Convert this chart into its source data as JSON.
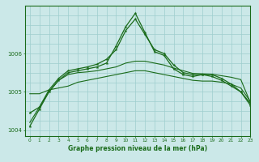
{
  "title": "Graphe pression niveau de la mer (hPa)",
  "bg_color": "#cbe8e8",
  "grid_color": "#9ecece",
  "line_color": "#1a6b1a",
  "xlim": [
    -0.5,
    23
  ],
  "ylim": [
    1003.85,
    1007.25
  ],
  "yticks": [
    1004,
    1005,
    1006
  ],
  "xticks": [
    0,
    1,
    2,
    3,
    4,
    5,
    6,
    7,
    8,
    9,
    10,
    11,
    12,
    13,
    14,
    15,
    16,
    17,
    18,
    19,
    20,
    21,
    22,
    23
  ],
  "hgrid_vals": [
    1004,
    1004.25,
    1004.5,
    1004.75,
    1005,
    1005.25,
    1005.5,
    1005.75,
    1006,
    1006.25,
    1006.5,
    1006.75,
    1007
  ],
  "series": [
    {
      "x": [
        0,
        1,
        2,
        3,
        4,
        5,
        6,
        7,
        8,
        9,
        10,
        11,
        12,
        13,
        14,
        15,
        16,
        17,
        18,
        19,
        20,
        21,
        22,
        23
      ],
      "y": [
        1004.1,
        1004.55,
        1005.0,
        1005.3,
        1005.5,
        1005.55,
        1005.6,
        1005.65,
        1005.75,
        1006.2,
        1006.7,
        1007.05,
        1006.55,
        1006.05,
        1005.95,
        1005.6,
        1005.45,
        1005.4,
        1005.45,
        1005.4,
        1005.3,
        1005.15,
        1005.0,
        1004.65
      ],
      "marker": true,
      "lw": 0.9
    },
    {
      "x": [
        0,
        1,
        2,
        3,
        4,
        5,
        6,
        7,
        8,
        9,
        10,
        11,
        12,
        13,
        14,
        15,
        16,
        17,
        18,
        19,
        20,
        21,
        22,
        23
      ],
      "y": [
        1004.45,
        1004.6,
        1005.05,
        1005.35,
        1005.55,
        1005.6,
        1005.65,
        1005.72,
        1005.85,
        1006.1,
        1006.6,
        1006.9,
        1006.5,
        1006.1,
        1006.0,
        1005.7,
        1005.5,
        1005.45,
        1005.45,
        1005.45,
        1005.35,
        1005.2,
        1005.0,
        1004.7
      ],
      "marker": true,
      "lw": 0.9
    },
    {
      "x": [
        0,
        1,
        2,
        3,
        4,
        5,
        6,
        7,
        8,
        9,
        10,
        11,
        12,
        13,
        14,
        15,
        16,
        17,
        18,
        19,
        20,
        21,
        22,
        23
      ],
      "y": [
        1004.95,
        1004.95,
        1005.05,
        1005.1,
        1005.15,
        1005.25,
        1005.3,
        1005.35,
        1005.4,
        1005.45,
        1005.5,
        1005.55,
        1005.55,
        1005.5,
        1005.45,
        1005.4,
        1005.35,
        1005.3,
        1005.28,
        1005.28,
        1005.25,
        1005.2,
        1005.1,
        1004.75
      ],
      "marker": false,
      "lw": 0.8
    },
    {
      "x": [
        0,
        1,
        2,
        3,
        4,
        5,
        6,
        7,
        8,
        9,
        10,
        11,
        12,
        13,
        14,
        15,
        16,
        17,
        18,
        19,
        20,
        21,
        22,
        23
      ],
      "y": [
        1004.2,
        1004.6,
        1005.0,
        1005.3,
        1005.45,
        1005.5,
        1005.52,
        1005.55,
        1005.6,
        1005.65,
        1005.75,
        1005.8,
        1005.8,
        1005.75,
        1005.7,
        1005.62,
        1005.55,
        1005.48,
        1005.47,
        1005.46,
        1005.42,
        1005.38,
        1005.32,
        1004.72
      ],
      "marker": false,
      "lw": 0.8
    }
  ]
}
